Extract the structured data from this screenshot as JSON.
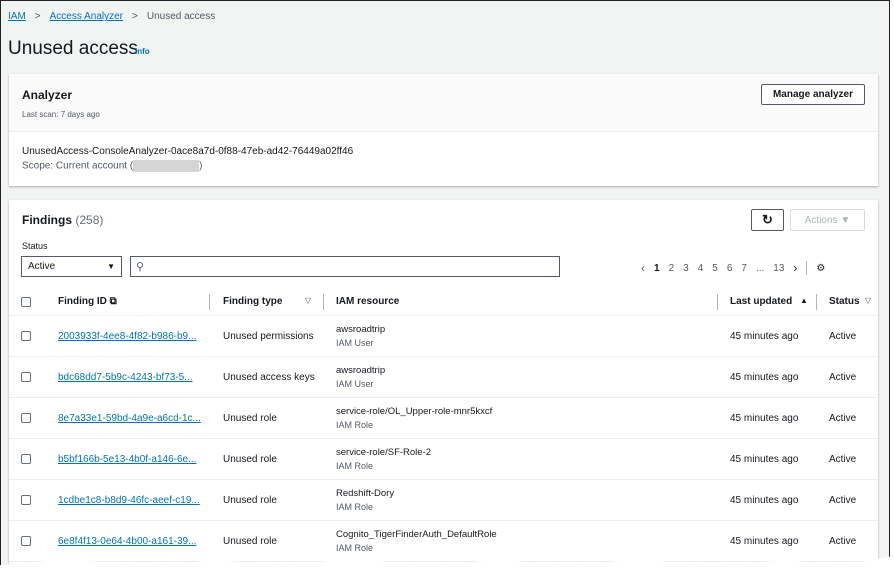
{
  "breadcrumb": {
    "items": [
      "IAM",
      "Access Analyzer"
    ],
    "current": "Unused access"
  },
  "page": {
    "title": "Unused access",
    "info": "Info"
  },
  "analyzer": {
    "title": "Analyzer",
    "last_scan": "Last scan: 7 days ago",
    "manage_button": "Manage analyzer",
    "name": "UnusedAccess-ConsoleAnalyzer-0ace8a7d-0f88-47eb-ad42-76449a02ff46",
    "scope_prefix": "Scope: Current account (",
    "scope_suffix": ")"
  },
  "findings": {
    "title": "Findings",
    "count": "(258)",
    "actions": "Actions",
    "status_label": "Status",
    "status_value": "Active",
    "search_placeholder": "",
    "pages": [
      "1",
      "2",
      "3",
      "4",
      "5",
      "6",
      "7",
      "...",
      "13"
    ],
    "current_page": "1",
    "columns": [
      "Finding ID",
      "Finding type",
      "IAM resource",
      "Last updated",
      "Status"
    ],
    "rows": [
      {
        "id": "2003933f-4ee8-4f82-b986-b9...",
        "type": "Unused permissions",
        "resource": "awsroadtrip",
        "resource_type": "IAM User",
        "updated": "45 minutes ago",
        "status": "Active"
      },
      {
        "id": "bdc68dd7-5b9c-4243-bf73-5...",
        "type": "Unused access keys",
        "resource": "awsroadtrip",
        "resource_type": "IAM User",
        "updated": "45 minutes ago",
        "status": "Active"
      },
      {
        "id": "8e7a33e1-59bd-4a9e-a6cd-1c...",
        "type": "Unused role",
        "resource": "service-role/OL_Upper-role-mnr5kxcf",
        "resource_type": "IAM Role",
        "updated": "45 minutes ago",
        "status": "Active"
      },
      {
        "id": "b5bf166b-5e13-4b0f-a146-6e...",
        "type": "Unused role",
        "resource": "service-role/SF-Role-2",
        "resource_type": "IAM Role",
        "updated": "45 minutes ago",
        "status": "Active"
      },
      {
        "id": "1cdbe1c8-b8d9-46fc-aeef-c19...",
        "type": "Unused role",
        "resource": "Redshift-Dory",
        "resource_type": "IAM Role",
        "updated": "45 minutes ago",
        "status": "Active"
      },
      {
        "id": "6e8f4f13-0e64-4b00-a161-39...",
        "type": "Unused role",
        "resource": "Cognito_TigerFinderAuth_DefaultRole",
        "resource_type": "IAM Role",
        "updated": "45 minutes ago",
        "status": "Active"
      }
    ]
  },
  "colors": {
    "link": "#0073bb",
    "background": "#f2f3f3"
  }
}
